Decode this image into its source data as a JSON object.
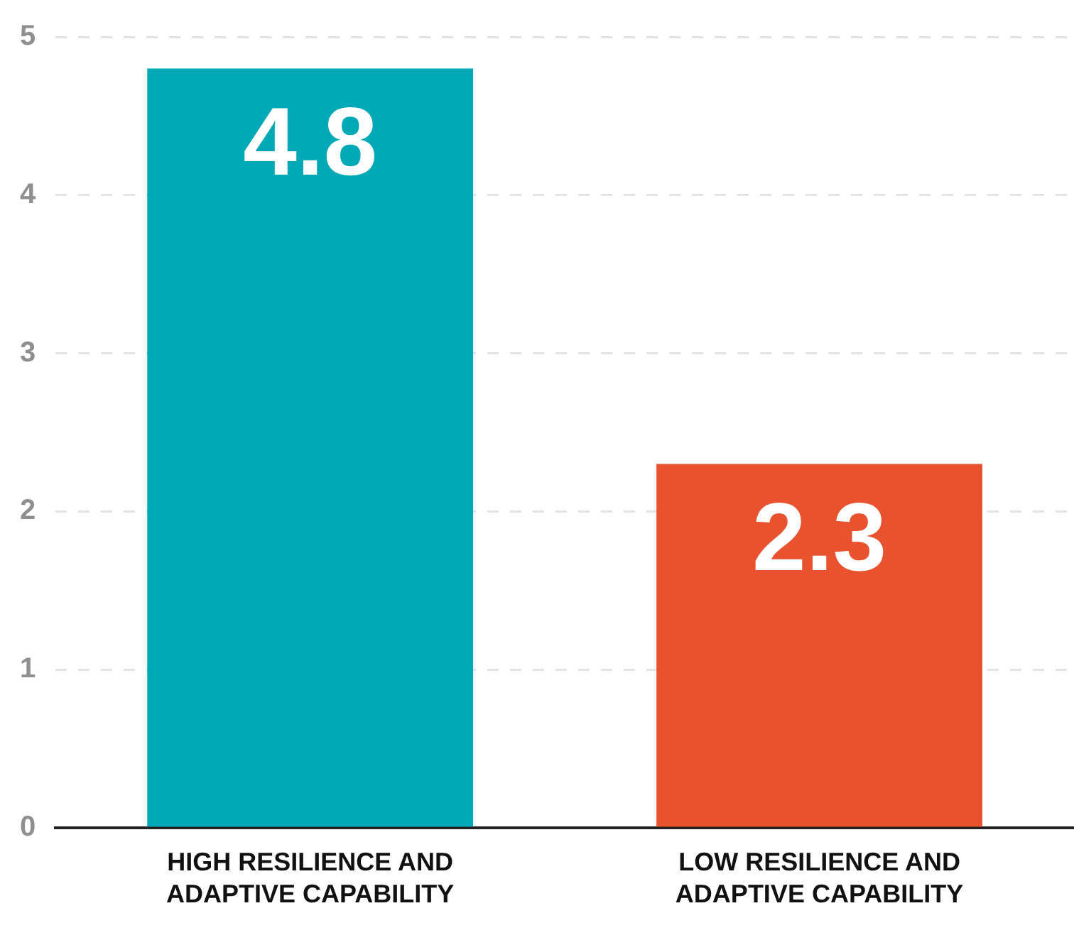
{
  "chart_data": {
    "type": "bar",
    "categories": [
      "HIGH RESILIENCE AND ADAPTIVE CAPABILITY",
      "LOW RESILIENCE AND ADAPTIVE CAPABILITY"
    ],
    "values": [
      4.8,
      2.3
    ],
    "colors": [
      "#00a9b5",
      "#e8522e"
    ],
    "ylim": [
      0,
      5
    ],
    "yticks": [
      0,
      1,
      2,
      3,
      4,
      5
    ],
    "grid": "y",
    "legend": false,
    "data_labels": true
  }
}
